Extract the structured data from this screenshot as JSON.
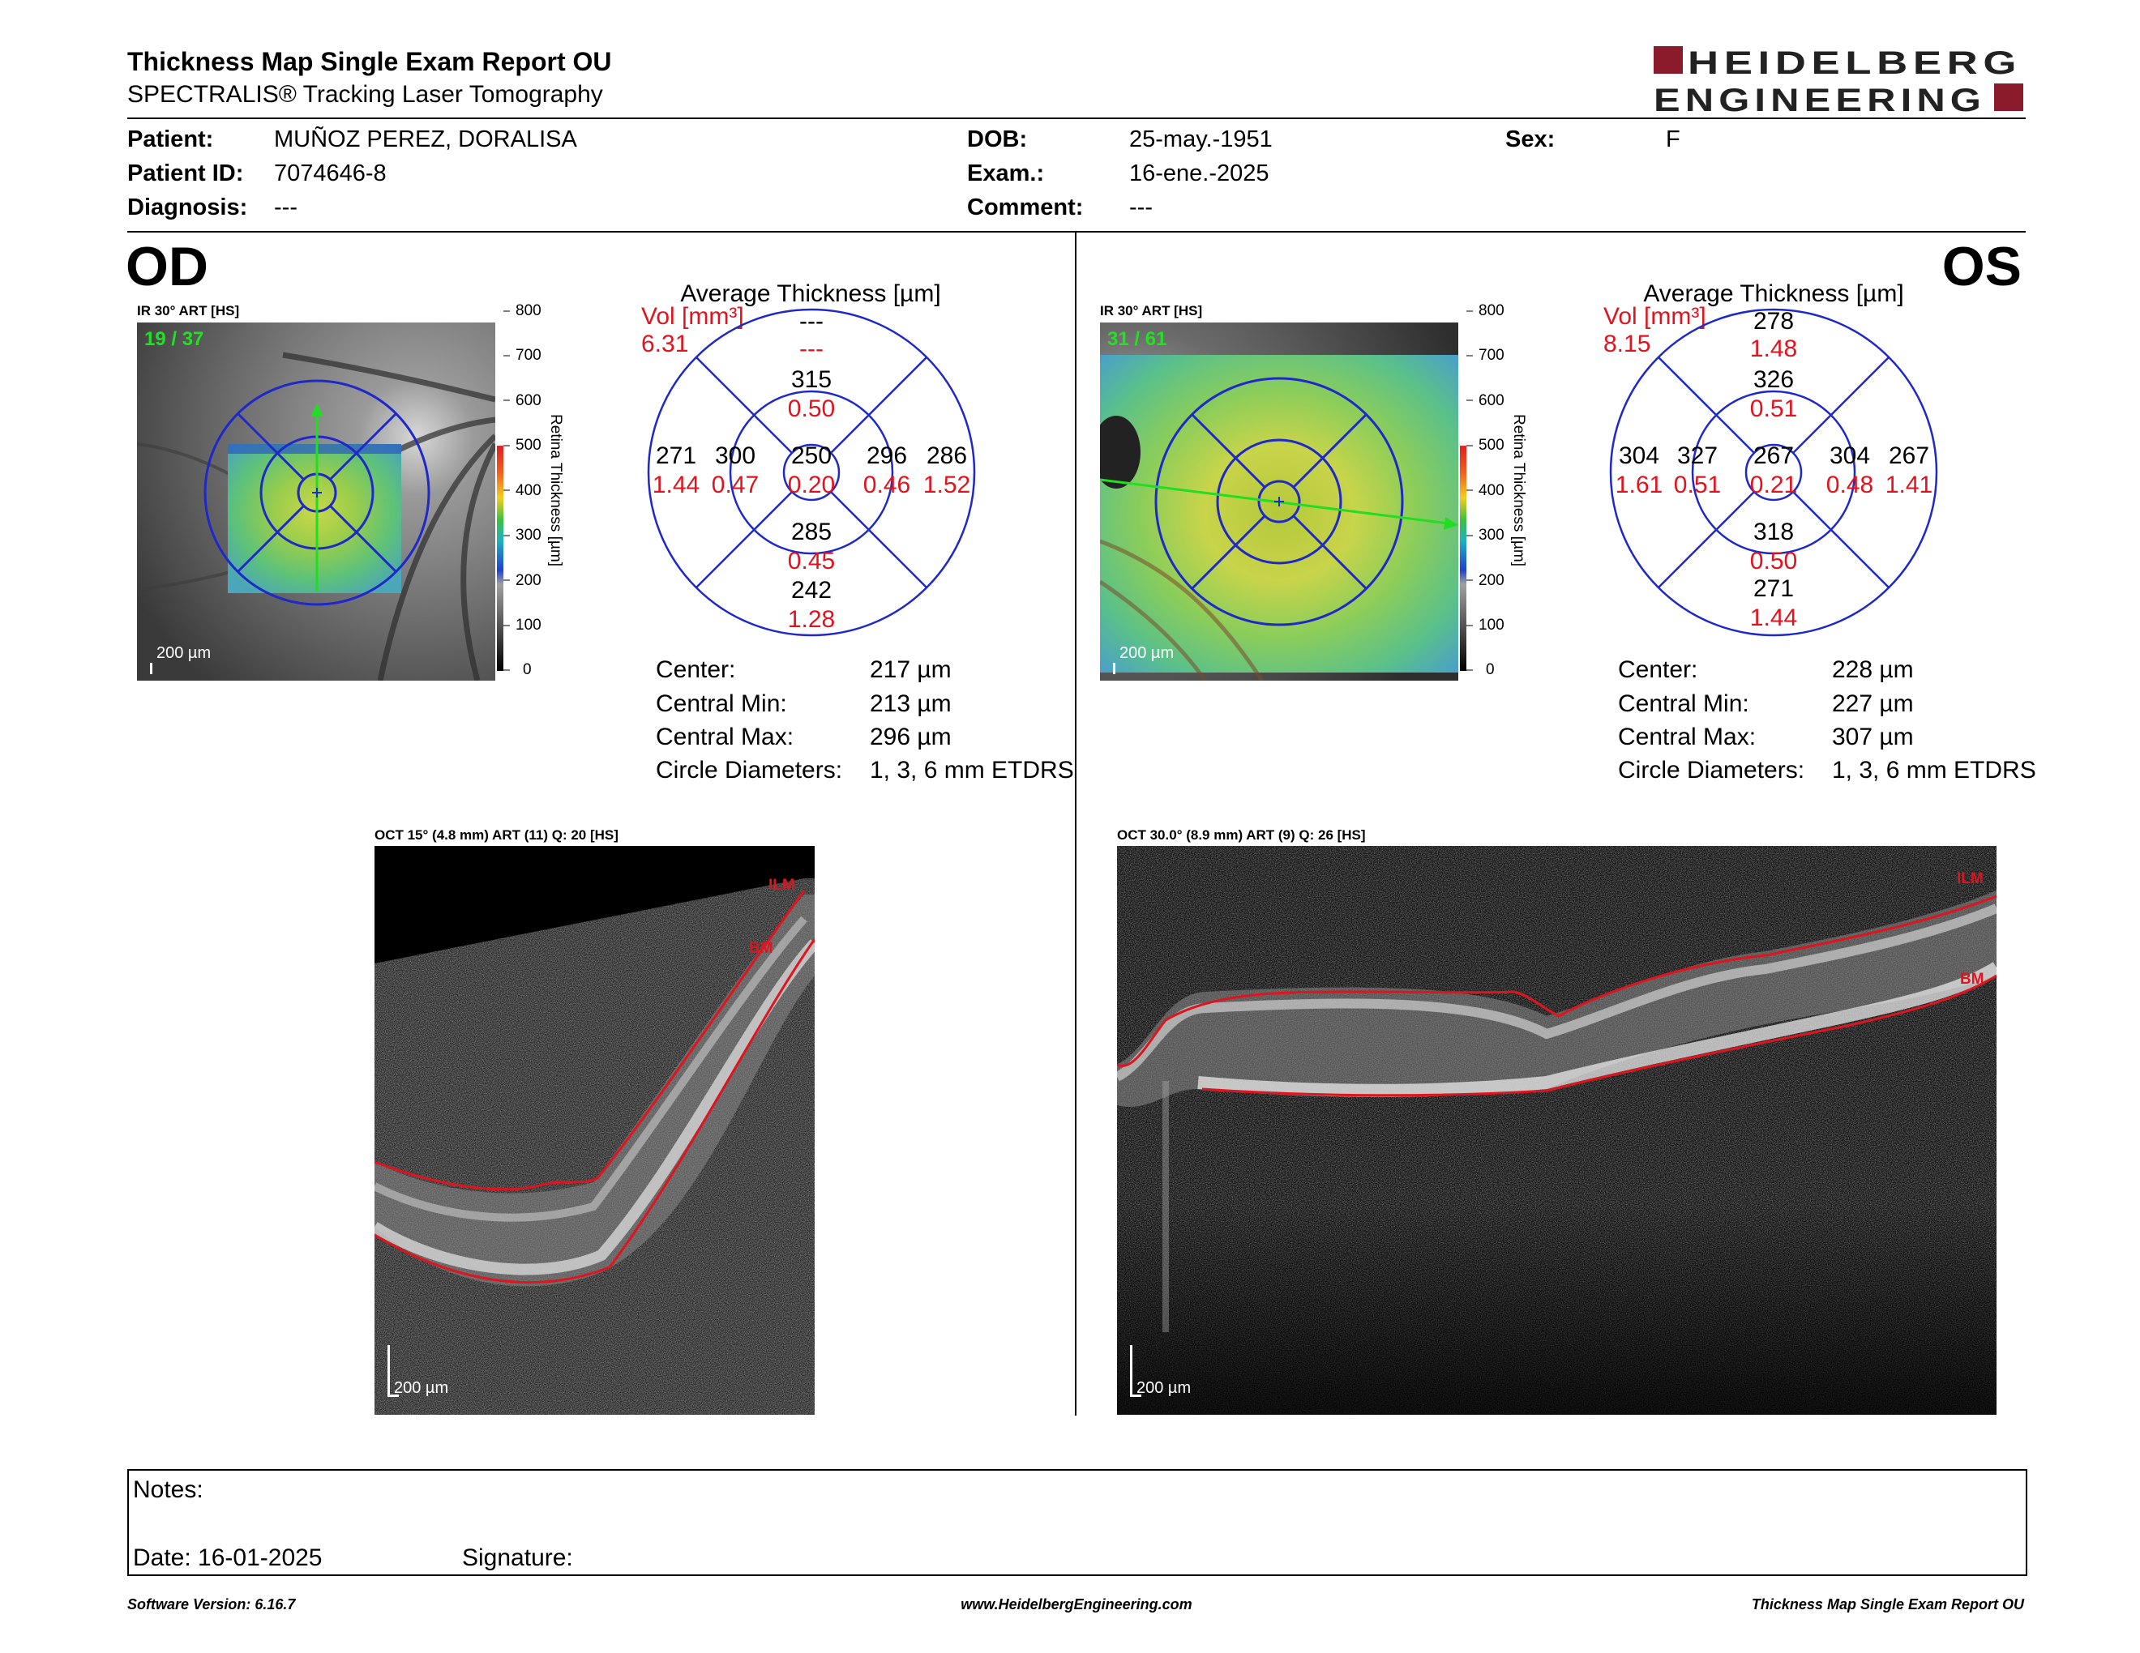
{
  "header": {
    "title": "Thickness Map Single Exam Report OU",
    "subtitle": "SPECTRALIS® Tracking Laser Tomography",
    "logo": {
      "line1": "HEIDELBERG",
      "line2": "ENGINEERING",
      "accent": "#8b1a2b"
    }
  },
  "patient": {
    "patient_label": "Patient:",
    "patient_value": "MUÑOZ PEREZ, DORALISA",
    "id_label": "Patient ID:",
    "id_value": "7074646-8",
    "diagnosis_label": "Diagnosis:",
    "diagnosis_value": "---",
    "dob_label": "DOB:",
    "dob_value": "25-may.-1951",
    "exam_label": "Exam.:",
    "exam_value": "16-ene.-2025",
    "comment_label": "Comment:",
    "comment_value": "---",
    "sex_label": "Sex:",
    "sex_value": "F"
  },
  "od": {
    "eye_label": "OD",
    "ir_label": "IR 30° ART [HS]",
    "frames": "19 / 37",
    "scale": "200 µm",
    "avg_title": "Average Thickness [µm]",
    "vol_label": "Vol [mm³]",
    "vol_value": "6.31",
    "outer_top": "---",
    "outer_top_vol": "---",
    "inner_top": "315",
    "inner_top_vol": "0.50",
    "outer_left": "271",
    "outer_left_vol": "1.44",
    "inner_left": "300",
    "inner_left_vol": "0.47",
    "center": "250",
    "center_vol": "0.20",
    "inner_right": "296",
    "inner_right_vol": "0.46",
    "outer_right": "286",
    "outer_right_vol": "1.52",
    "inner_bottom": "285",
    "inner_bottom_vol": "0.45",
    "outer_bottom": "242",
    "outer_bottom_vol": "1.28",
    "stats": {
      "center_label": "Center:",
      "center_value": "217 µm",
      "min_label": "Central Min:",
      "min_value": "213 µm",
      "max_label": "Central Max:",
      "max_value": "296 µm",
      "diam_label": "Circle Diameters:",
      "diam_value": "1, 3, 6 mm ETDRS"
    },
    "oct_label": "OCT 15° (4.8 mm) ART (11) Q: 20 [HS]",
    "oct_scale": "200 µm",
    "ilm": "ILM",
    "bm": "BM"
  },
  "os": {
    "eye_label": "OS",
    "ir_label": "IR 30° ART [HS]",
    "frames": "31 / 61",
    "scale": "200 µm",
    "avg_title": "Average Thickness [µm]",
    "vol_label": "Vol [mm³]",
    "vol_value": "8.15",
    "outer_top": "278",
    "outer_top_vol": "1.48",
    "inner_top": "326",
    "inner_top_vol": "0.51",
    "outer_left": "304",
    "outer_left_vol": "1.61",
    "inner_left": "327",
    "inner_left_vol": "0.51",
    "center": "267",
    "center_vol": "0.21",
    "inner_right": "304",
    "inner_right_vol": "0.48",
    "outer_right": "267",
    "outer_right_vol": "1.41",
    "inner_bottom": "318",
    "inner_bottom_vol": "0.50",
    "outer_bottom": "271",
    "outer_bottom_vol": "1.44",
    "stats": {
      "center_label": "Center:",
      "center_value": "228 µm",
      "min_label": "Central Min:",
      "min_value": "227 µm",
      "max_label": "Central Max:",
      "max_value": "307 µm",
      "diam_label": "Circle Diameters:",
      "diam_value": "1, 3, 6 mm ETDRS"
    },
    "oct_label": "OCT 30.0° (8.9 mm) ART (9) Q: 26 [HS]",
    "oct_scale": "200 µm",
    "ilm": "ILM",
    "bm": "BM"
  },
  "colorbar": {
    "ticks": [
      "800",
      "700",
      "600",
      "500",
      "400",
      "300",
      "200",
      "100",
      "0"
    ],
    "title": "Retina Thickness [µm]"
  },
  "notes": {
    "notes_label": "Notes:",
    "date_label": "Date: 16-01-2025",
    "signature_label": "Signature:"
  },
  "footer": {
    "left": "Software Version: 6.16.7",
    "center": "www.HeidelbergEngineering.com",
    "right": "Thickness Map Single Exam Report OU"
  },
  "colors": {
    "red": "#e0141e",
    "grid_blue": "#1f28c8",
    "logo_red": "#8b1a2b"
  }
}
